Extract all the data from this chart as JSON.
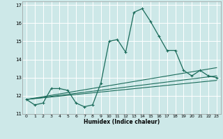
{
  "xlabel": "Humidex (Indice chaleur)",
  "ylabel": "",
  "background_color": "#cde8e8",
  "grid_color": "#ffffff",
  "line_color": "#1a6b5a",
  "xlim": [
    -0.5,
    23.5
  ],
  "ylim": [
    11,
    17.2
  ],
  "yticks": [
    11,
    12,
    13,
    14,
    15,
    16,
    17
  ],
  "xticks": [
    0,
    1,
    2,
    3,
    4,
    5,
    6,
    7,
    8,
    9,
    10,
    11,
    12,
    13,
    14,
    15,
    16,
    17,
    18,
    19,
    20,
    21,
    22,
    23
  ],
  "series1_x": [
    0,
    1,
    2,
    3,
    4,
    5,
    6,
    7,
    8,
    9,
    10,
    11,
    12,
    13,
    14,
    15,
    16,
    17,
    18,
    19,
    20,
    21,
    22,
    23
  ],
  "series1_y": [
    11.8,
    11.5,
    11.6,
    12.4,
    12.4,
    12.3,
    11.6,
    11.4,
    11.5,
    12.7,
    15.0,
    15.1,
    14.4,
    16.6,
    16.8,
    16.1,
    15.3,
    14.5,
    14.5,
    13.4,
    13.1,
    13.4,
    13.1,
    13.0
  ],
  "series2_x": [
    0,
    23
  ],
  "series2_y": [
    11.8,
    13.55
  ],
  "series3_x": [
    0,
    23
  ],
  "series3_y": [
    11.8,
    12.85
  ],
  "series4_x": [
    0,
    23
  ],
  "series4_y": [
    11.8,
    13.1
  ]
}
